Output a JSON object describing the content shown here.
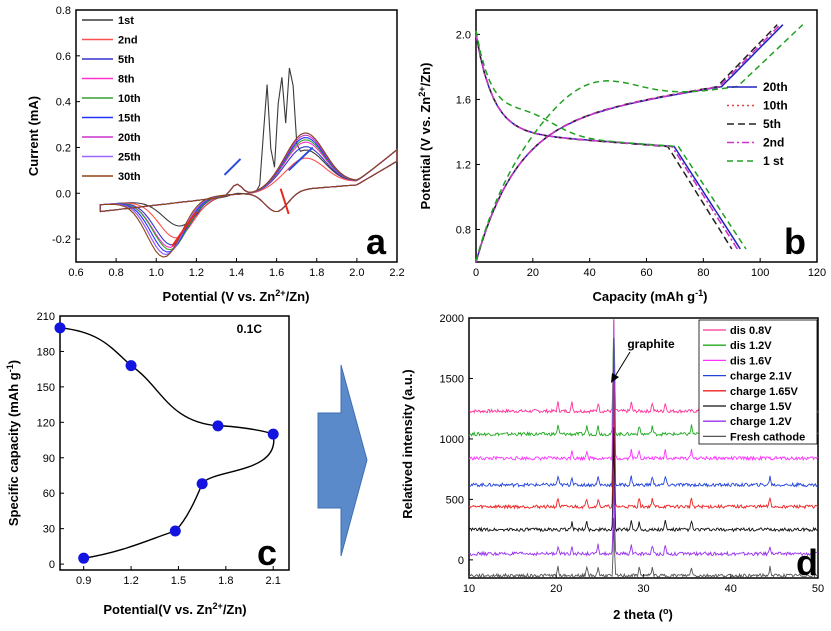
{
  "colors": {
    "axis": "#000000",
    "arrow_fill": "#5B8ACB",
    "arrow_stroke": "#3F6FB0",
    "marker": "#1414E0"
  },
  "chart_data": [
    {
      "id": "a",
      "type": "line",
      "panel_label": "a",
      "xlabel_parts": [
        "Potential (V vs. Zn",
        "2+",
        "/Zn)"
      ],
      "ylabel": "Current (mA)",
      "xlim": [
        0.6,
        2.2
      ],
      "ylim": [
        -0.3,
        0.8
      ],
      "xticks": [
        0.6,
        0.8,
        1.0,
        1.2,
        1.4,
        1.6,
        1.8,
        2.0,
        2.2
      ],
      "yticks": [
        -0.2,
        0.0,
        0.2,
        0.4,
        0.6,
        0.8
      ],
      "legend": "top-left",
      "series": [
        {
          "name": "1st",
          "color": "#3a3a3a",
          "peak_ox": 0.6,
          "peak_red": -0.12,
          "x_red": 1.12
        },
        {
          "name": "2nd",
          "color": "#ff5050",
          "peak_ox": 0.18,
          "peak_red": -0.17,
          "x_red": 1.1
        },
        {
          "name": "5th",
          "color": "#3333cc",
          "peak_ox": 0.23,
          "peak_red": -0.2,
          "x_red": 1.08
        },
        {
          "name": "8th",
          "color": "#ff33cc",
          "peak_ox": 0.25,
          "peak_red": -0.21,
          "x_red": 1.07
        },
        {
          "name": "10th",
          "color": "#33a033",
          "peak_ox": 0.26,
          "peak_red": -0.22,
          "x_red": 1.07
        },
        {
          "name": "15th",
          "color": "#2233ff",
          "peak_ox": 0.27,
          "peak_red": -0.23,
          "x_red": 1.06
        },
        {
          "name": "20th",
          "color": "#cc33cc",
          "peak_ox": 0.28,
          "peak_red": -0.24,
          "x_red": 1.05
        },
        {
          "name": "25th",
          "color": "#9966ff",
          "peak_ox": 0.29,
          "peak_red": -0.24,
          "x_red": 1.05
        },
        {
          "name": "30th",
          "color": "#8B4513",
          "peak_ox": 0.29,
          "peak_red": -0.25,
          "x_red": 1.04
        }
      ]
    },
    {
      "id": "b",
      "type": "line",
      "panel_label": "b",
      "xlabel_parts": [
        "Capacity (mAh g",
        "-1",
        ")"
      ],
      "ylabel_parts": [
        "Potential (V vs. Zn",
        "2+",
        "/Zn)"
      ],
      "xlim": [
        0,
        120
      ],
      "ylim": [
        0.6,
        2.15
      ],
      "xticks": [
        0,
        20,
        40,
        60,
        80,
        100,
        120
      ],
      "yticks": [
        0.8,
        1.2,
        1.6,
        2.0
      ],
      "legend": "right",
      "series": [
        {
          "name": "20th",
          "color": "#2020c0",
          "dash": "",
          "cap_d": 93,
          "cap_c": 108
        },
        {
          "name": "10th",
          "color": "#e04040",
          "dash": "2,3",
          "cap_d": 92,
          "cap_c": 107
        },
        {
          "name": "5th",
          "color": "#222222",
          "dash": "7,4",
          "cap_d": 90,
          "cap_c": 106
        },
        {
          "name": "2nd",
          "color": "#cc33cc",
          "dash": "7,3,2,3",
          "cap_d": 92,
          "cap_c": 107
        },
        {
          "name": "1 st",
          "color": "#22a022",
          "dash": "6,4",
          "cap_d": 95,
          "cap_c": 115
        }
      ]
    },
    {
      "id": "c",
      "type": "line",
      "panel_label": "c",
      "annotation": "0.1C",
      "xlabel_parts": [
        "Potential(V vs. Zn",
        "2+",
        "/Zn)"
      ],
      "ylabel_parts": [
        "Specific capacity (mAh g",
        "-1",
        ")"
      ],
      "xlim": [
        0.75,
        2.2
      ],
      "ylim": [
        -5,
        210
      ],
      "xticks": [
        0.9,
        1.2,
        1.5,
        1.8,
        2.1
      ],
      "xtick_labels": [
        "0.9",
        "1.2",
        "1.5",
        "1.8",
        "2.1"
      ],
      "yticks": [
        0,
        30,
        60,
        90,
        120,
        150,
        180,
        210
      ],
      "x": [
        0.9,
        1.48,
        1.65,
        2.1,
        1.75,
        1.2,
        0.75
      ],
      "y": [
        5,
        28,
        68,
        110,
        117,
        168,
        200
      ]
    },
    {
      "id": "d",
      "type": "line",
      "panel_label": "d",
      "xlabel_parts": [
        "2 theta (",
        "o",
        ")"
      ],
      "ylabel": "Relatived intensity (a.u.)",
      "xlim": [
        10,
        50
      ],
      "ylim": [
        -150,
        2000
      ],
      "xticks": [
        10,
        20,
        30,
        40,
        50
      ],
      "yticks": [
        0,
        500,
        1000,
        1500,
        2000
      ],
      "annotation": "graphite",
      "legend": "top-right",
      "series": [
        {
          "name": "dis 0.8V",
          "color": "#ff3399",
          "offset": 1230
        },
        {
          "name": "dis 1.2V",
          "color": "#22aa22",
          "offset": 1040
        },
        {
          "name": "dis 1.6V",
          "color": "#ff33ff",
          "offset": 840
        },
        {
          "name": "charge 2.1V",
          "color": "#2244dd",
          "offset": 620
        },
        {
          "name": "charge 1.65V",
          "color": "#ee2222",
          "offset": 440
        },
        {
          "name": "charge 1.5V",
          "color": "#111111",
          "offset": 250
        },
        {
          "name": "charge 1.2V",
          "color": "#9933ee",
          "offset": 50
        },
        {
          "name": "Fresh cathode",
          "color": "#555555",
          "offset": -130
        }
      ]
    }
  ]
}
